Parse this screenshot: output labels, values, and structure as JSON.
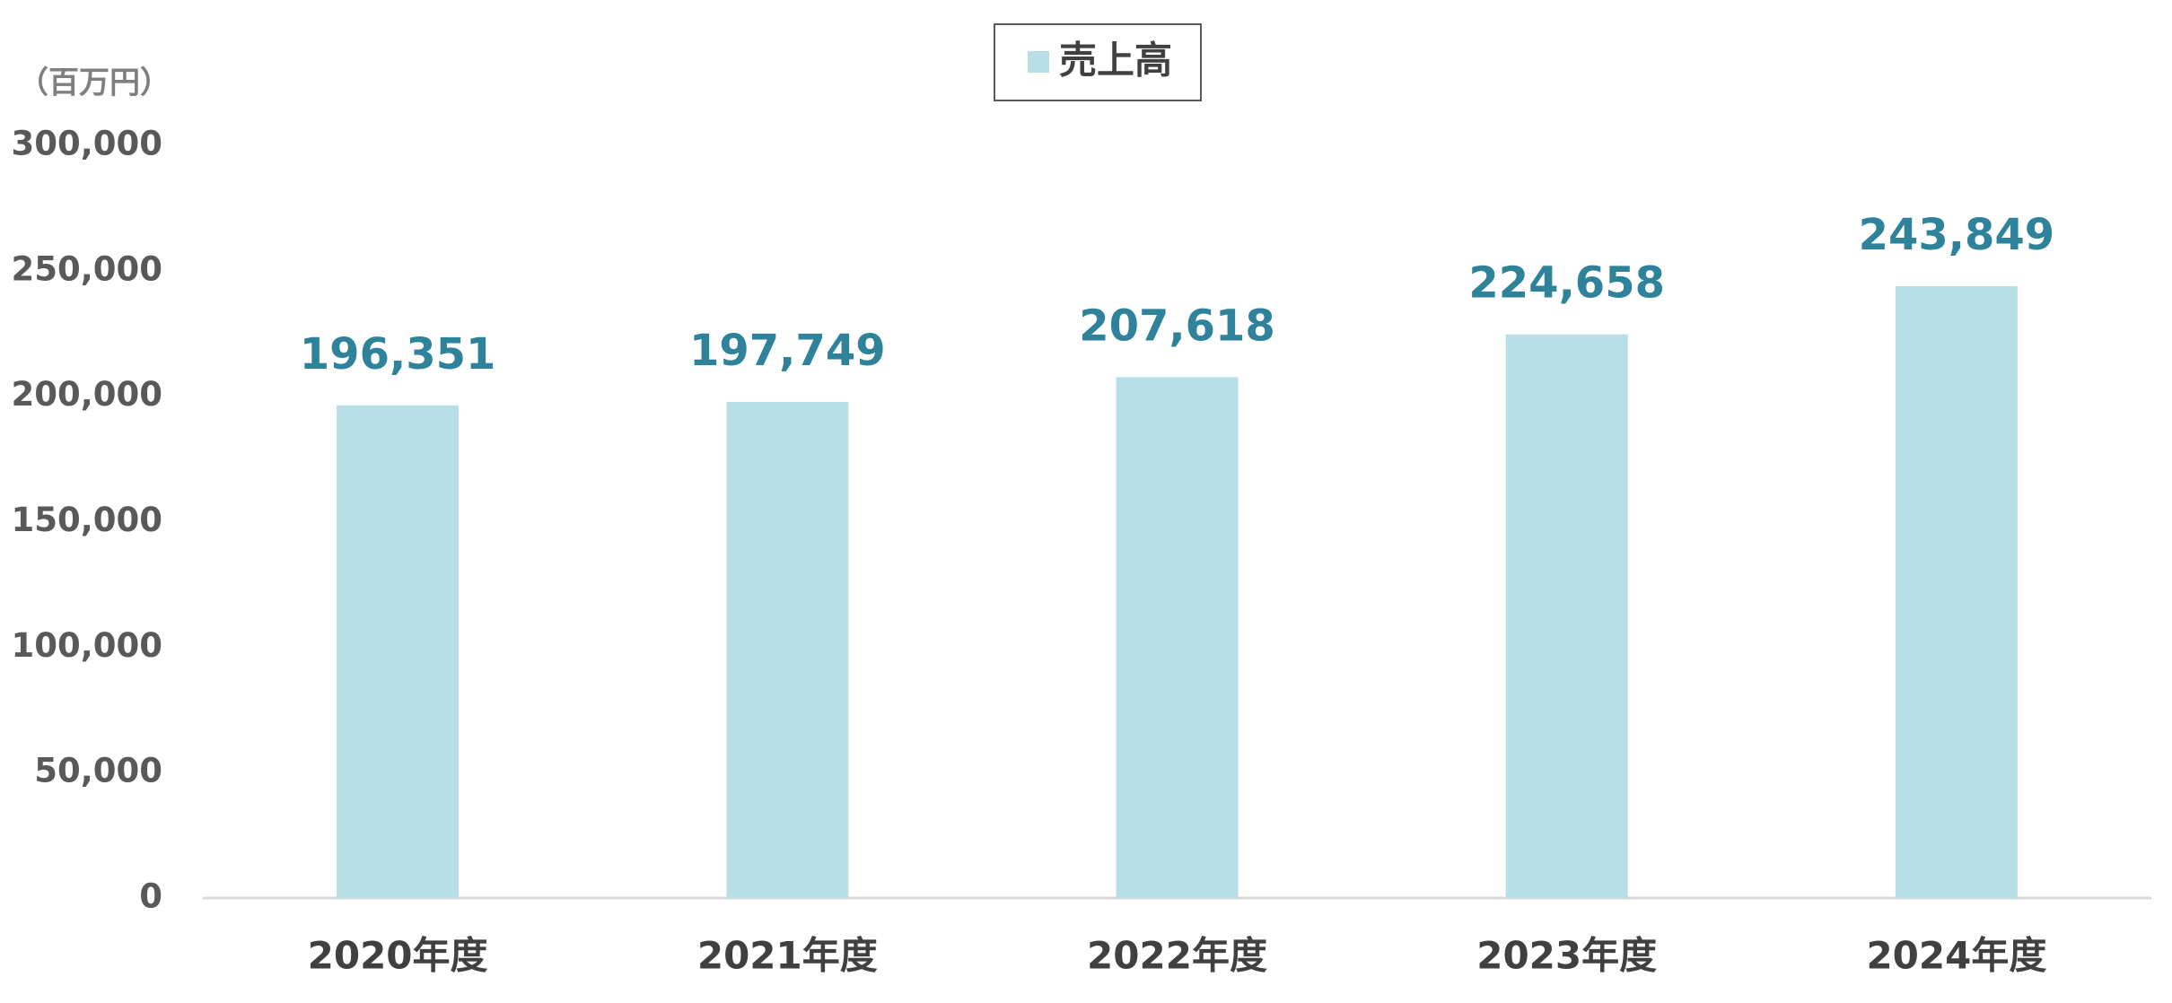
{
  "chart_data": {
    "type": "bar",
    "unit_label": "（百万円）",
    "categories": [
      "2020年度",
      "2021年度",
      "2022年度",
      "2023年度",
      "2024年度"
    ],
    "series": [
      {
        "name": "売上高",
        "color": "#b8dee8",
        "values": [
          196351,
          197749,
          207618,
          224658,
          243849
        ],
        "value_labels": [
          "196,351",
          "197,749",
          "207,618",
          "224,658",
          "243,849"
        ]
      }
    ],
    "value_label_color": "#2e8299",
    "ylim": [
      0,
      300000
    ],
    "yticks": [
      0,
      {
        "value": 50000,
        "label": "50,000"
      },
      {
        "value": 100000,
        "label": "100,000"
      },
      {
        "value": 150000,
        "label": "150,000"
      },
      {
        "value": 200000,
        "label": "200,000"
      },
      {
        "value": 250000,
        "label": "250,000"
      },
      {
        "value": 300000,
        "label": "300,000"
      }
    ],
    "grid": false,
    "legend": "top"
  }
}
